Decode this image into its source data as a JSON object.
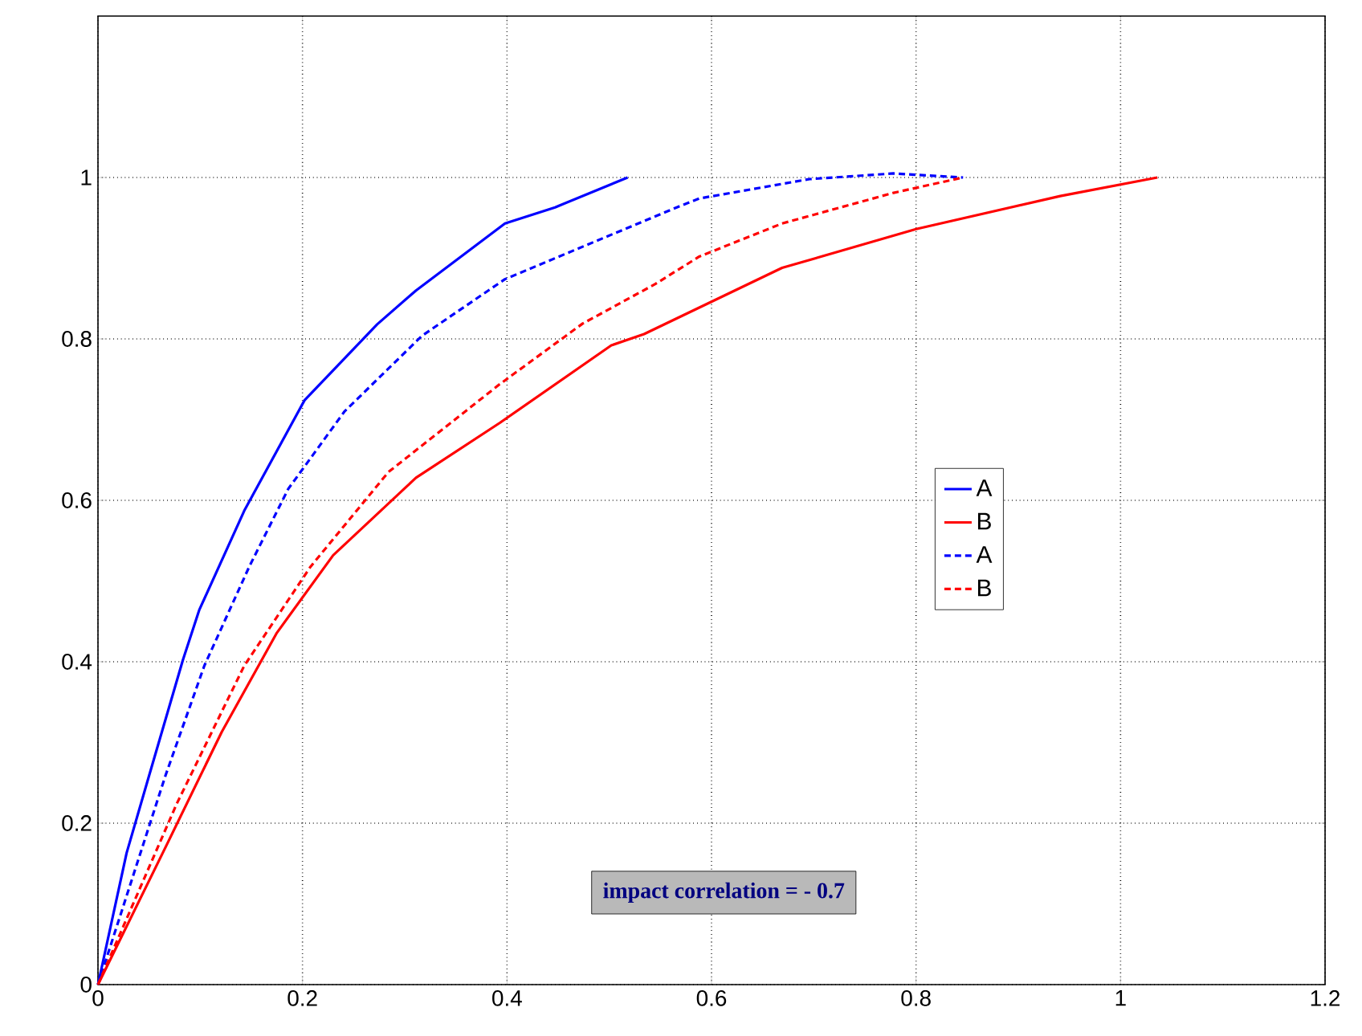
{
  "chart_data": {
    "type": "line",
    "xlim": [
      0,
      1.2
    ],
    "ylim": [
      0,
      1.2
    ],
    "xticks": [
      0,
      0.2,
      0.4,
      0.6,
      0.8,
      1,
      1.2
    ],
    "yticks": [
      0,
      0.2,
      0.4,
      0.6,
      0.8,
      1
    ],
    "grid": true,
    "legend": "right",
    "marker": "none",
    "annotations": [
      "impact correlation =  - 0.7"
    ],
    "series": [
      {
        "name": "A",
        "color": "#0000ff",
        "line_style": "solid",
        "x": [
          0,
          0.028,
          0.05,
          0.083,
          0.099,
          0.143,
          0.202,
          0.273,
          0.311,
          0.398,
          0.447,
          0.518
        ],
        "values": [
          0,
          0.163,
          0.259,
          0.402,
          0.464,
          0.587,
          0.724,
          0.818,
          0.86,
          0.943,
          0.963,
          1.0
        ]
      },
      {
        "name": "B",
        "color": "#ff0000",
        "line_style": "solid",
        "x": [
          0,
          0.066,
          0.121,
          0.175,
          0.23,
          0.311,
          0.393,
          0.502,
          0.534,
          0.669,
          0.8,
          0.941,
          1.036
        ],
        "values": [
          0,
          0.17,
          0.313,
          0.436,
          0.532,
          0.628,
          0.696,
          0.792,
          0.806,
          0.888,
          0.936,
          0.977,
          1.0
        ]
      },
      {
        "name": "A",
        "color": "#0000ff",
        "line_style": "dashed",
        "x": [
          0,
          0.066,
          0.104,
          0.148,
          0.186,
          0.241,
          0.317,
          0.398,
          0.566,
          0.588,
          0.696,
          0.778,
          0.846
        ],
        "values": [
          0,
          0.259,
          0.395,
          0.518,
          0.614,
          0.71,
          0.804,
          0.874,
          0.963,
          0.974,
          0.998,
          1.005,
          1.0
        ]
      },
      {
        "name": "B",
        "color": "#ff0000",
        "line_style": "dashed",
        "x": [
          0,
          0.077,
          0.143,
          0.208,
          0.284,
          0.393,
          0.474,
          0.545,
          0.588,
          0.669,
          0.778,
          0.846
        ],
        "values": [
          0,
          0.224,
          0.395,
          0.518,
          0.635,
          0.744,
          0.819,
          0.868,
          0.902,
          0.943,
          0.981,
          1.0
        ]
      }
    ]
  }
}
